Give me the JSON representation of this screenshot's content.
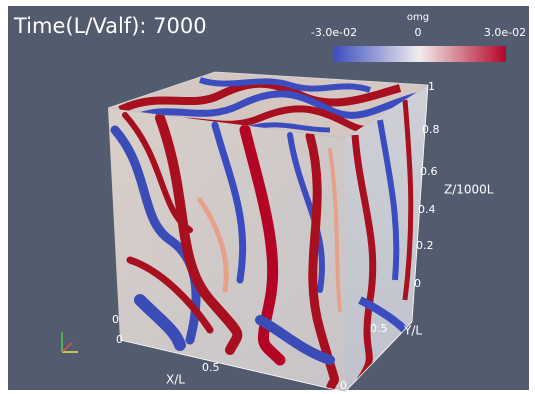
{
  "header": {
    "title": "Time(L/Valf): 7000"
  },
  "colorbar": {
    "title": "omg",
    "labels": [
      "-3.0e-02",
      "0",
      "3.0e-02"
    ]
  },
  "axes": {
    "z": {
      "title": "Z/1000L",
      "ticks": [
        "1",
        "0.8",
        "0.6",
        "0.4",
        "0.2",
        "0"
      ]
    },
    "y": {
      "title": "Y/L",
      "ticks": [
        "0.5",
        "0",
        "0"
      ]
    },
    "x": {
      "title": "X/L",
      "ticks": [
        "0",
        "0.5"
      ]
    }
  }
}
